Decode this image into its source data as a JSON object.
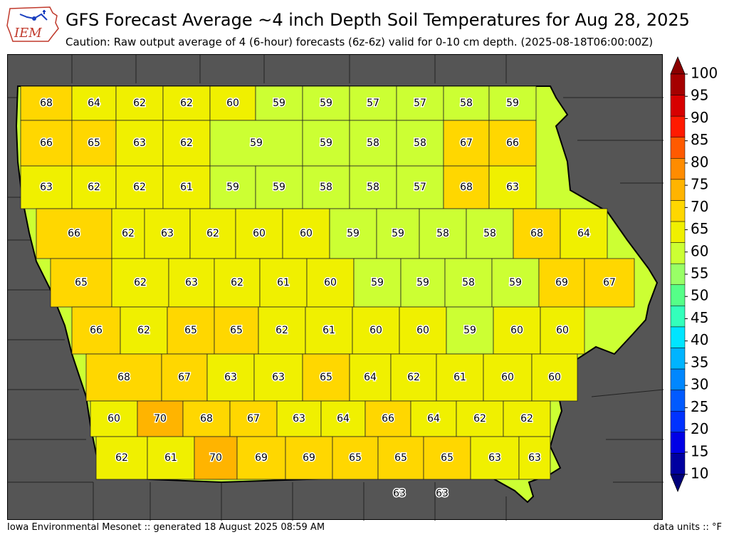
{
  "header": {
    "title": "GFS Forecast Average ~4 inch Depth Soil Temperatures for Aug 28, 2025",
    "subtitle": "Caution: Raw output average of 4 (6-hour) forecasts (6z-6z) valid for 0-10 cm depth. (2025-08-18T06:00:00Z)",
    "logo_text": "IEM"
  },
  "footer": {
    "left": "Iowa Environmental Mesonet :: generated 18 August 2025 08:59 AM",
    "right": "data units :: °F"
  },
  "colorbar": {
    "ticks": [
      "100",
      "95",
      "90",
      "85",
      "80",
      "75",
      "70",
      "65",
      "60",
      "55",
      "50",
      "45",
      "40",
      "35",
      "30",
      "25",
      "20",
      "15",
      "10"
    ],
    "colors": [
      "#a50000",
      "#d70000",
      "#ff1a00",
      "#ff5a00",
      "#ff8c00",
      "#ffb400",
      "#ffd700",
      "#f0f000",
      "#ccff33",
      "#99ff66",
      "#55ff88",
      "#33ffbb",
      "#00e5ff",
      "#00b4ff",
      "#0087ff",
      "#005aff",
      "#0032ff",
      "#0000e6",
      "#0000a0"
    ],
    "top_arrow_color": "#8b0000",
    "bottom_arrow_color": "#00007a"
  },
  "map": {
    "background_color": "#555555",
    "county_values": [
      {
        "label": "68",
        "t": 68
      },
      {
        "label": "64",
        "t": 64
      },
      {
        "label": "62",
        "t": 62
      },
      {
        "label": "62",
        "t": 62
      },
      {
        "label": "60",
        "t": 60
      },
      {
        "label": "59",
        "t": 59
      },
      {
        "label": "59",
        "t": 59
      },
      {
        "label": "57",
        "t": 57
      },
      {
        "label": "57",
        "t": 57
      },
      {
        "label": "58",
        "t": 58
      },
      {
        "label": "59",
        "t": 59
      },
      {
        "label": "66",
        "t": 66
      },
      {
        "label": "65",
        "t": 65
      },
      {
        "label": "63",
        "t": 63
      },
      {
        "label": "62",
        "t": 62
      },
      {
        "label": "59",
        "t": 59
      },
      {
        "label": "59",
        "t": 59
      },
      {
        "label": "58",
        "t": 58
      },
      {
        "label": "58",
        "t": 58
      },
      {
        "label": "67",
        "t": 67
      },
      {
        "label": "66",
        "t": 66
      },
      {
        "label": "63",
        "t": 63
      },
      {
        "label": "62",
        "t": 62
      },
      {
        "label": "62",
        "t": 62
      },
      {
        "label": "61",
        "t": 61
      },
      {
        "label": "59",
        "t": 59
      },
      {
        "label": "59",
        "t": 59
      },
      {
        "label": "58",
        "t": 58
      },
      {
        "label": "58",
        "t": 58
      },
      {
        "label": "57",
        "t": 57
      },
      {
        "label": "68",
        "t": 68
      },
      {
        "label": "63",
        "t": 63
      },
      {
        "label": "66",
        "t": 66
      },
      {
        "label": "62",
        "t": 62
      },
      {
        "label": "63",
        "t": 63
      },
      {
        "label": "62",
        "t": 62
      },
      {
        "label": "60",
        "t": 60
      },
      {
        "label": "60",
        "t": 60
      },
      {
        "label": "59",
        "t": 59
      },
      {
        "label": "59",
        "t": 59
      },
      {
        "label": "58",
        "t": 58
      },
      {
        "label": "58",
        "t": 58
      },
      {
        "label": "68",
        "t": 68
      },
      {
        "label": "64",
        "t": 64
      },
      {
        "label": "65",
        "t": 65
      },
      {
        "label": "62",
        "t": 62
      },
      {
        "label": "63",
        "t": 63
      },
      {
        "label": "62",
        "t": 62
      },
      {
        "label": "61",
        "t": 61
      },
      {
        "label": "60",
        "t": 60
      },
      {
        "label": "59",
        "t": 59
      },
      {
        "label": "59",
        "t": 59
      },
      {
        "label": "58",
        "t": 58
      },
      {
        "label": "59",
        "t": 59
      },
      {
        "label": "69",
        "t": 69
      },
      {
        "label": "67",
        "t": 67
      },
      {
        "label": "66",
        "t": 66
      },
      {
        "label": "62",
        "t": 62
      },
      {
        "label": "65",
        "t": 65
      },
      {
        "label": "65",
        "t": 65
      },
      {
        "label": "62",
        "t": 62
      },
      {
        "label": "61",
        "t": 61
      },
      {
        "label": "60",
        "t": 60
      },
      {
        "label": "60",
        "t": 60
      },
      {
        "label": "59",
        "t": 59
      },
      {
        "label": "60",
        "t": 60
      },
      {
        "label": "60",
        "t": 60
      },
      {
        "label": "68",
        "t": 68
      },
      {
        "label": "67",
        "t": 67
      },
      {
        "label": "63",
        "t": 63
      },
      {
        "label": "63",
        "t": 63
      },
      {
        "label": "65",
        "t": 65
      },
      {
        "label": "64",
        "t": 64
      },
      {
        "label": "62",
        "t": 62
      },
      {
        "label": "61",
        "t": 61
      },
      {
        "label": "60",
        "t": 60
      },
      {
        "label": "60",
        "t": 60
      },
      {
        "label": "60",
        "t": 60
      },
      {
        "label": "70",
        "t": 70
      },
      {
        "label": "68",
        "t": 68
      },
      {
        "label": "67",
        "t": 67
      },
      {
        "label": "63",
        "t": 63
      },
      {
        "label": "64",
        "t": 64
      },
      {
        "label": "66",
        "t": 66
      },
      {
        "label": "64",
        "t": 64
      },
      {
        "label": "62",
        "t": 62
      },
      {
        "label": "62",
        "t": 62
      },
      {
        "label": "62",
        "t": 62
      },
      {
        "label": "61",
        "t": 61
      },
      {
        "label": "70",
        "t": 70
      },
      {
        "label": "69",
        "t": 69
      },
      {
        "label": "69",
        "t": 69
      },
      {
        "label": "65",
        "t": 65
      },
      {
        "label": "65",
        "t": 65
      },
      {
        "label": "65",
        "t": 65
      },
      {
        "label": "63",
        "t": 63
      },
      {
        "label": "63",
        "t": 63
      },
      {
        "label": "63",
        "t": 63
      },
      {
        "label": "63",
        "t": 63
      }
    ]
  }
}
